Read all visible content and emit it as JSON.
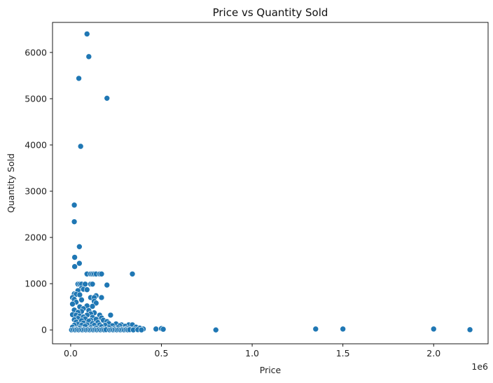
{
  "chart_data": {
    "type": "scatter",
    "title": "Price vs Quantity Sold",
    "xlabel": "Price",
    "ylabel": "Quantity Sold",
    "x_offset_label": "1e6",
    "x_scale": 1000000,
    "xlim": [
      -100000,
      2300000
    ],
    "ylim": [
      -300,
      6650
    ],
    "x_ticks": [
      0,
      500000,
      1000000,
      1500000,
      2000000
    ],
    "x_tick_labels": [
      "0.0",
      "0.5",
      "1.0",
      "1.5",
      "2.0"
    ],
    "y_ticks": [
      0,
      1000,
      2000,
      3000,
      4000,
      5000,
      6000
    ],
    "y_tick_labels": [
      "0",
      "1000",
      "2000",
      "3000",
      "4000",
      "5000",
      "6000"
    ],
    "grid": false,
    "marker_color": "#1f77b4",
    "points": [
      [
        90000,
        6400
      ],
      [
        100000,
        5910
      ],
      [
        45000,
        5440
      ],
      [
        200000,
        5010
      ],
      [
        55000,
        3970
      ],
      [
        20000,
        2700
      ],
      [
        20000,
        2340
      ],
      [
        48000,
        1800
      ],
      [
        22000,
        1570
      ],
      [
        48000,
        1440
      ],
      [
        22000,
        1370
      ],
      [
        90000,
        1210
      ],
      [
        110000,
        1210
      ],
      [
        120000,
        1210
      ],
      [
        130000,
        1210
      ],
      [
        140000,
        1210
      ],
      [
        160000,
        1210
      ],
      [
        170000,
        1210
      ],
      [
        340000,
        1210
      ],
      [
        40000,
        990
      ],
      [
        50000,
        990
      ],
      [
        60000,
        990
      ],
      [
        80000,
        990
      ],
      [
        110000,
        990
      ],
      [
        120000,
        990
      ],
      [
        200000,
        970
      ],
      [
        60000,
        900
      ],
      [
        70000,
        880
      ],
      [
        90000,
        870
      ],
      [
        40000,
        850
      ],
      [
        20000,
        780
      ],
      [
        30000,
        770
      ],
      [
        50000,
        760
      ],
      [
        140000,
        740
      ],
      [
        10000,
        700
      ],
      [
        110000,
        700
      ],
      [
        130000,
        700
      ],
      [
        170000,
        700
      ],
      [
        20000,
        660
      ],
      [
        60000,
        650
      ],
      [
        130000,
        620
      ],
      [
        30000,
        600
      ],
      [
        140000,
        580
      ],
      [
        10000,
        560
      ],
      [
        90000,
        520
      ],
      [
        50000,
        500
      ],
      [
        120000,
        510
      ],
      [
        70000,
        460
      ],
      [
        20000,
        430
      ],
      [
        100000,
        420
      ],
      [
        60000,
        400
      ],
      [
        40000,
        380
      ],
      [
        130000,
        370
      ],
      [
        110000,
        350
      ],
      [
        10000,
        330
      ],
      [
        30000,
        320
      ],
      [
        90000,
        320
      ],
      [
        160000,
        320
      ],
      [
        220000,
        320
      ],
      [
        50000,
        300
      ],
      [
        70000,
        280
      ],
      [
        120000,
        270
      ],
      [
        170000,
        260
      ],
      [
        40000,
        250
      ],
      [
        80000,
        240
      ],
      [
        140000,
        230
      ],
      [
        20000,
        220
      ],
      [
        110000,
        210
      ],
      [
        180000,
        210
      ],
      [
        60000,
        200
      ],
      [
        100000,
        190
      ],
      [
        200000,
        180
      ],
      [
        30000,
        170
      ],
      [
        150000,
        160
      ],
      [
        70000,
        150
      ],
      [
        120000,
        140
      ],
      [
        210000,
        140
      ],
      [
        250000,
        130
      ],
      [
        40000,
        120
      ],
      [
        90000,
        110
      ],
      [
        160000,
        110
      ],
      [
        280000,
        110
      ],
      [
        320000,
        110
      ],
      [
        340000,
        110
      ],
      [
        20000,
        100
      ],
      [
        60000,
        100
      ],
      [
        130000,
        100
      ],
      [
        190000,
        100
      ],
      [
        230000,
        90
      ],
      [
        270000,
        90
      ],
      [
        300000,
        80
      ],
      [
        80000,
        80
      ],
      [
        170000,
        70
      ],
      [
        360000,
        60
      ],
      [
        10000,
        60
      ],
      [
        110000,
        50
      ],
      [
        210000,
        50
      ],
      [
        260000,
        50
      ],
      [
        380000,
        40
      ],
      [
        50000,
        40
      ],
      [
        140000,
        40
      ],
      [
        240000,
        30
      ],
      [
        310000,
        30
      ],
      [
        30000,
        20
      ],
      [
        100000,
        20
      ],
      [
        180000,
        20
      ],
      [
        290000,
        20
      ],
      [
        350000,
        20
      ],
      [
        400000,
        20
      ],
      [
        470000,
        20
      ],
      [
        500000,
        30
      ],
      [
        510000,
        15
      ],
      [
        20000,
        10
      ],
      [
        70000,
        10
      ],
      [
        120000,
        10
      ],
      [
        200000,
        10
      ],
      [
        330000,
        10
      ],
      [
        800000,
        0
      ],
      [
        1350000,
        20
      ],
      [
        1500000,
        20
      ],
      [
        2000000,
        20
      ],
      [
        2200000,
        5
      ],
      [
        5000,
        0
      ],
      [
        15000,
        5
      ],
      [
        25000,
        0
      ],
      [
        35000,
        5
      ],
      [
        45000,
        0
      ],
      [
        55000,
        5
      ],
      [
        65000,
        0
      ],
      [
        75000,
        5
      ],
      [
        85000,
        0
      ],
      [
        95000,
        5
      ],
      [
        105000,
        0
      ],
      [
        115000,
        5
      ],
      [
        125000,
        0
      ],
      [
        135000,
        5
      ],
      [
        145000,
        0
      ],
      [
        155000,
        5
      ],
      [
        165000,
        0
      ],
      [
        175000,
        5
      ],
      [
        185000,
        0
      ],
      [
        195000,
        5
      ],
      [
        215000,
        0
      ],
      [
        225000,
        5
      ],
      [
        235000,
        0
      ],
      [
        245000,
        5
      ],
      [
        255000,
        0
      ],
      [
        265000,
        5
      ],
      [
        275000,
        0
      ],
      [
        285000,
        5
      ],
      [
        295000,
        0
      ],
      [
        305000,
        5
      ],
      [
        315000,
        0
      ],
      [
        325000,
        5
      ],
      [
        345000,
        0
      ],
      [
        370000,
        5
      ],
      [
        390000,
        0
      ]
    ]
  }
}
